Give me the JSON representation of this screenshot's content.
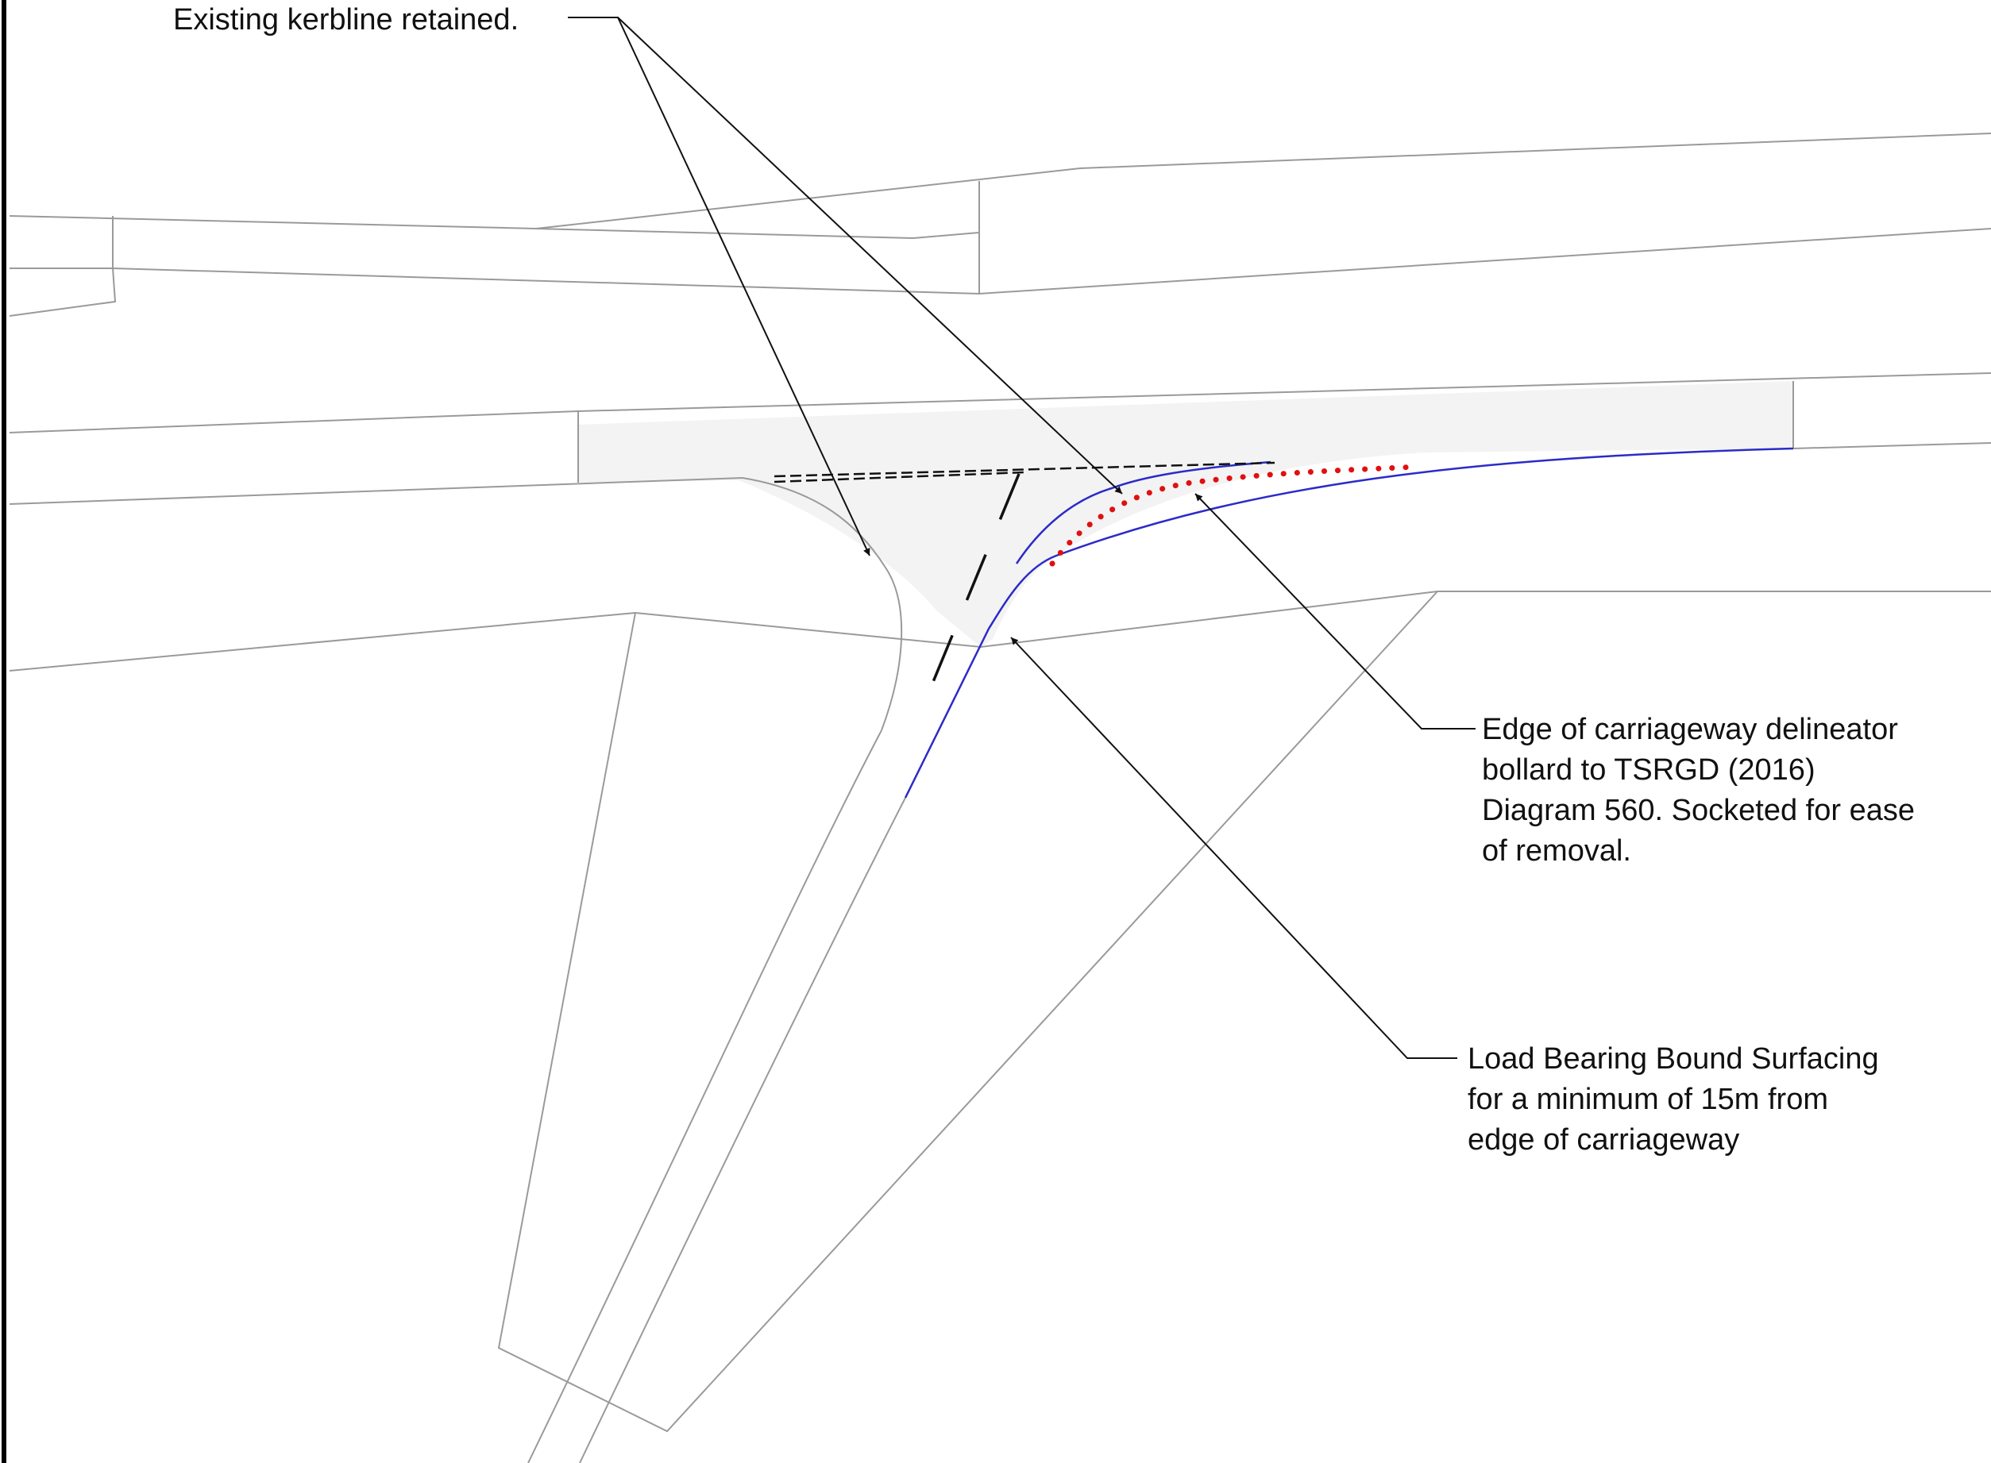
{
  "annotations": {
    "kerbline": {
      "lines": [
        "Existing kerbline retained."
      ]
    },
    "bollard": {
      "lines": [
        "Edge of carriageway delineator",
        "bollard to TSRGD (2016)",
        "Diagram 560. Socketed for ease",
        "of removal."
      ]
    },
    "surfacing": {
      "lines": [
        "Load Bearing Bound Surfacing",
        "for a minimum of 15m from",
        "edge of carriageway"
      ]
    }
  },
  "colors": {
    "outline": "#9a9a9a",
    "leader": "#111111",
    "shaded_area": "#f3f3f3",
    "proposed_kerb": "#2b2bc8",
    "bollards": "#e01010",
    "frame": "#000000"
  }
}
